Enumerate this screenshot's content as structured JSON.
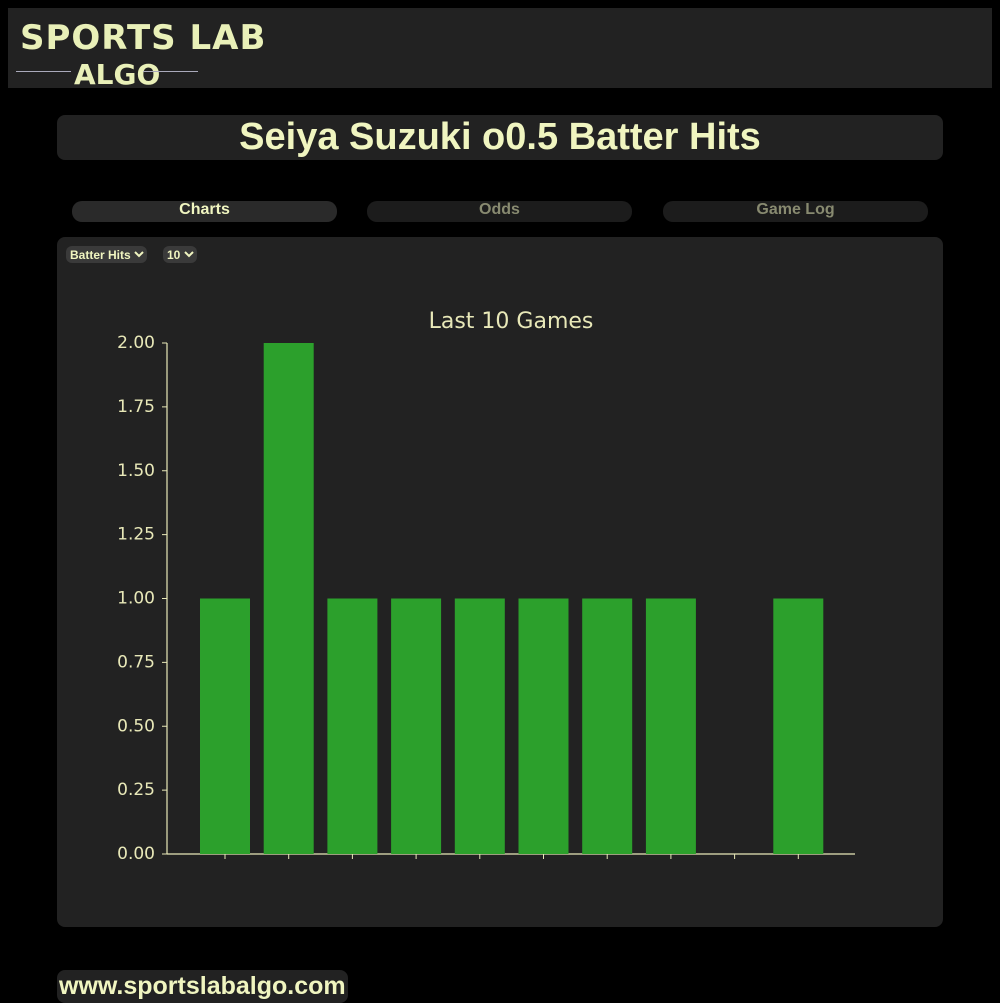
{
  "header": {
    "logo_line1": "SPORTS LAB",
    "logo_line2": "ALGO"
  },
  "title": "Seiya Suzuki o0.5 Batter Hits",
  "tabs": [
    "Charts",
    "Odds",
    "Game Log"
  ],
  "controls": {
    "stat": "Batter Hits",
    "games": "10"
  },
  "chart_data": {
    "type": "bar",
    "title": "Last 10 Games",
    "categories": [
      null,
      null,
      null,
      null,
      null,
      null,
      null,
      null,
      null,
      null
    ],
    "values": [
      1,
      2,
      1,
      1,
      1,
      1,
      1,
      1,
      0,
      1
    ],
    "color": "#2ca02c",
    "ylim": [
      0,
      2
    ],
    "yticks": [
      {
        "value": 0,
        "label": "0.00"
      },
      {
        "value": 0.25,
        "label": "0.25"
      },
      {
        "value": 0.5,
        "label": "0.50"
      },
      {
        "value": 0.75,
        "label": "0.75"
      },
      {
        "value": 1,
        "label": "1.00"
      },
      {
        "value": 1.25,
        "label": "1.25"
      },
      {
        "value": 1.5,
        "label": "1.50"
      },
      {
        "value": 1.75,
        "label": "1.75"
      },
      {
        "value": 2,
        "label": "2.00"
      }
    ],
    "grid": false
  },
  "footer": "www.sportslabalgo.com"
}
